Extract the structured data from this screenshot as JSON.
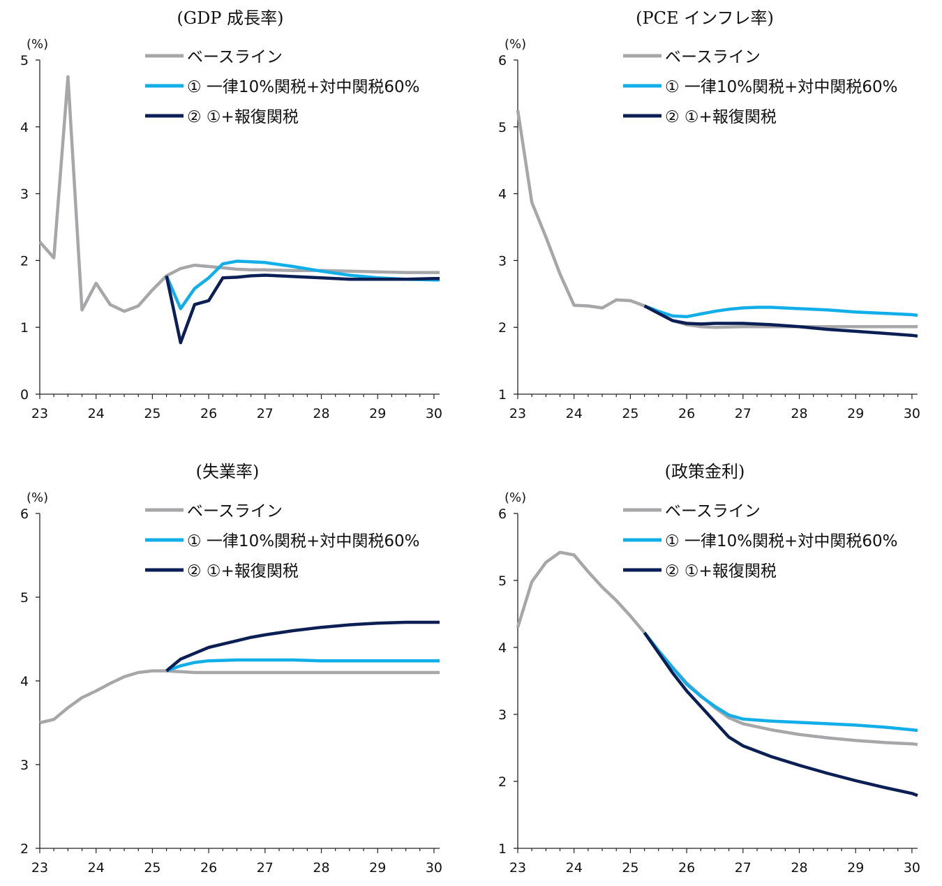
{
  "legend": [
    {
      "label": "ベースライン",
      "color": "#a7a7a9"
    },
    {
      "label": "① 一律10%関税+対中関税60%",
      "color": "#12aee8"
    },
    {
      "label": "② ①+報復関税",
      "color": "#0c1f55"
    }
  ],
  "chart_data": [
    {
      "type": "line",
      "title": "(GDP 成長率)",
      "ylabel": "(%)",
      "xlim": [
        23,
        30.1
      ],
      "ylim": [
        0,
        5
      ],
      "yticks": [
        0,
        1,
        2,
        3,
        4,
        5
      ],
      "xticks": [
        23,
        24,
        25,
        26,
        27,
        28,
        29,
        30
      ],
      "series": [
        {
          "name": "ベースライン",
          "x": [
            23,
            23.25,
            23.5,
            23.75,
            24,
            24.25,
            24.5,
            24.75,
            25,
            25.25,
            25.5,
            25.75,
            26,
            26.25,
            26.5,
            26.75,
            27,
            27.5,
            28,
            28.5,
            29,
            29.5,
            30,
            30.1
          ],
          "y": [
            2.28,
            2.04,
            4.75,
            1.26,
            1.66,
            1.34,
            1.24,
            1.32,
            1.56,
            1.77,
            1.88,
            1.93,
            1.91,
            1.89,
            1.87,
            1.86,
            1.86,
            1.85,
            1.85,
            1.84,
            1.83,
            1.82,
            1.82,
            1.82
          ]
        },
        {
          "name": "① 一律10%関税+対中関税60%",
          "x": [
            25.25,
            25.5,
            25.75,
            26,
            26.25,
            26.5,
            26.75,
            27,
            27.5,
            28,
            28.5,
            29,
            29.5,
            30,
            30.1
          ],
          "y": [
            1.77,
            1.28,
            1.58,
            1.74,
            1.95,
            1.99,
            1.98,
            1.97,
            1.91,
            1.84,
            1.78,
            1.74,
            1.72,
            1.71,
            1.71
          ]
        },
        {
          "name": "② ①+報復関税",
          "x": [
            25.25,
            25.5,
            25.75,
            26,
            26.25,
            26.5,
            26.75,
            27,
            27.5,
            28,
            28.5,
            29,
            29.5,
            30,
            30.1
          ],
          "y": [
            1.77,
            0.77,
            1.34,
            1.4,
            1.74,
            1.75,
            1.77,
            1.78,
            1.76,
            1.74,
            1.72,
            1.72,
            1.72,
            1.73,
            1.73
          ]
        }
      ]
    },
    {
      "type": "line",
      "title": "(PCE インフレ率)",
      "ylabel": "(%)",
      "xlim": [
        23,
        30.1
      ],
      "ylim": [
        1,
        6
      ],
      "yticks": [
        1,
        2,
        3,
        4,
        5,
        6
      ],
      "xticks": [
        23,
        24,
        25,
        26,
        27,
        28,
        29,
        30
      ],
      "series": [
        {
          "name": "ベースライン",
          "x": [
            23,
            23.25,
            23.5,
            23.75,
            24,
            24.25,
            24.5,
            24.75,
            25,
            25.25,
            25.5,
            25.75,
            26,
            26.25,
            26.5,
            27,
            27.5,
            28,
            28.5,
            29,
            29.5,
            30,
            30.1
          ],
          "y": [
            5.25,
            3.87,
            3.35,
            2.8,
            2.33,
            2.32,
            2.29,
            2.41,
            2.4,
            2.32,
            2.22,
            2.1,
            2.04,
            2.01,
            2.0,
            2.01,
            2.01,
            2.01,
            2.01,
            2.01,
            2.01,
            2.01,
            2.01
          ]
        },
        {
          "name": "① 一律10%関税+対中関税60%",
          "x": [
            25.25,
            25.5,
            25.75,
            26,
            26.25,
            26.5,
            26.75,
            27,
            27.25,
            27.5,
            28,
            28.5,
            29,
            29.5,
            30,
            30.1
          ],
          "y": [
            2.32,
            2.24,
            2.17,
            2.16,
            2.2,
            2.24,
            2.27,
            2.29,
            2.3,
            2.3,
            2.28,
            2.26,
            2.23,
            2.21,
            2.19,
            2.18
          ]
        },
        {
          "name": "② ①+報復関税",
          "x": [
            25.25,
            25.5,
            25.75,
            26,
            26.25,
            26.5,
            26.75,
            27,
            27.5,
            28,
            28.5,
            29,
            29.5,
            30,
            30.1
          ],
          "y": [
            2.32,
            2.21,
            2.1,
            2.06,
            2.05,
            2.06,
            2.06,
            2.06,
            2.04,
            2.01,
            1.97,
            1.94,
            1.91,
            1.88,
            1.87
          ]
        }
      ]
    },
    {
      "type": "line",
      "title": "(失業率)",
      "ylabel": "(%)",
      "xlim": [
        23,
        30.1
      ],
      "ylim": [
        2,
        6
      ],
      "yticks": [
        2,
        3,
        4,
        5,
        6
      ],
      "xticks": [
        23,
        24,
        25,
        26,
        27,
        28,
        29,
        30
      ],
      "series": [
        {
          "name": "ベースライン",
          "x": [
            23,
            23.25,
            23.5,
            23.75,
            24,
            24.25,
            24.5,
            24.75,
            25,
            25.25,
            25.5,
            25.75,
            26,
            26.5,
            27,
            27.5,
            28,
            28.5,
            29,
            29.5,
            30,
            30.1
          ],
          "y": [
            3.5,
            3.54,
            3.68,
            3.8,
            3.88,
            3.97,
            4.05,
            4.1,
            4.12,
            4.12,
            4.11,
            4.1,
            4.1,
            4.1,
            4.1,
            4.1,
            4.1,
            4.1,
            4.1,
            4.1,
            4.1,
            4.1
          ]
        },
        {
          "name": "① 一律10%関税+対中関税60%",
          "x": [
            25.25,
            25.5,
            25.75,
            26,
            26.5,
            27,
            27.5,
            28,
            28.5,
            29,
            29.5,
            30,
            30.1
          ],
          "y": [
            4.12,
            4.18,
            4.22,
            4.24,
            4.25,
            4.25,
            4.25,
            4.24,
            4.24,
            4.24,
            4.24,
            4.24,
            4.24
          ]
        },
        {
          "name": "② ①+報復関税",
          "x": [
            25.25,
            25.5,
            25.75,
            26,
            26.25,
            26.5,
            26.75,
            27,
            27.5,
            28,
            28.5,
            29,
            29.5,
            30,
            30.1
          ],
          "y": [
            4.12,
            4.26,
            4.33,
            4.4,
            4.44,
            4.48,
            4.52,
            4.55,
            4.6,
            4.64,
            4.67,
            4.69,
            4.7,
            4.7,
            4.7
          ]
        }
      ]
    },
    {
      "type": "line",
      "title": "(政策金利)",
      "ylabel": "(%)",
      "xlim": [
        23,
        30.1
      ],
      "ylim": [
        1,
        6
      ],
      "yticks": [
        1,
        2,
        3,
        4,
        5,
        6
      ],
      "xticks": [
        23,
        24,
        25,
        26,
        27,
        28,
        29,
        30
      ],
      "series": [
        {
          "name": "ベースライン",
          "x": [
            23,
            23.25,
            23.5,
            23.75,
            24,
            24.25,
            24.5,
            24.75,
            25,
            25.25,
            25.5,
            25.75,
            26,
            26.25,
            26.5,
            26.75,
            27,
            27.5,
            28,
            28.5,
            29,
            29.5,
            30,
            30.1
          ],
          "y": [
            4.3,
            4.98,
            5.27,
            5.42,
            5.38,
            5.13,
            4.9,
            4.7,
            4.47,
            4.22,
            3.95,
            3.7,
            3.47,
            3.28,
            3.1,
            2.95,
            2.86,
            2.77,
            2.7,
            2.65,
            2.61,
            2.58,
            2.56,
            2.55
          ]
        },
        {
          "name": "① 一律10%関税+対中関税60%",
          "x": [
            25.25,
            25.5,
            25.75,
            26,
            26.25,
            26.5,
            26.75,
            27,
            27.5,
            28,
            28.5,
            29,
            29.5,
            30,
            30.1
          ],
          "y": [
            4.22,
            3.95,
            3.7,
            3.45,
            3.27,
            3.12,
            2.99,
            2.93,
            2.9,
            2.88,
            2.86,
            2.84,
            2.81,
            2.77,
            2.76
          ]
        },
        {
          "name": "② ①+報復関税",
          "x": [
            25.25,
            25.5,
            25.75,
            26,
            26.25,
            26.5,
            26.75,
            27,
            27.5,
            28,
            28.5,
            29,
            29.5,
            30,
            30.1
          ],
          "y": [
            4.22,
            3.92,
            3.62,
            3.35,
            3.12,
            2.89,
            2.66,
            2.53,
            2.37,
            2.24,
            2.12,
            2.01,
            1.91,
            1.82,
            1.79
          ]
        }
      ]
    }
  ]
}
